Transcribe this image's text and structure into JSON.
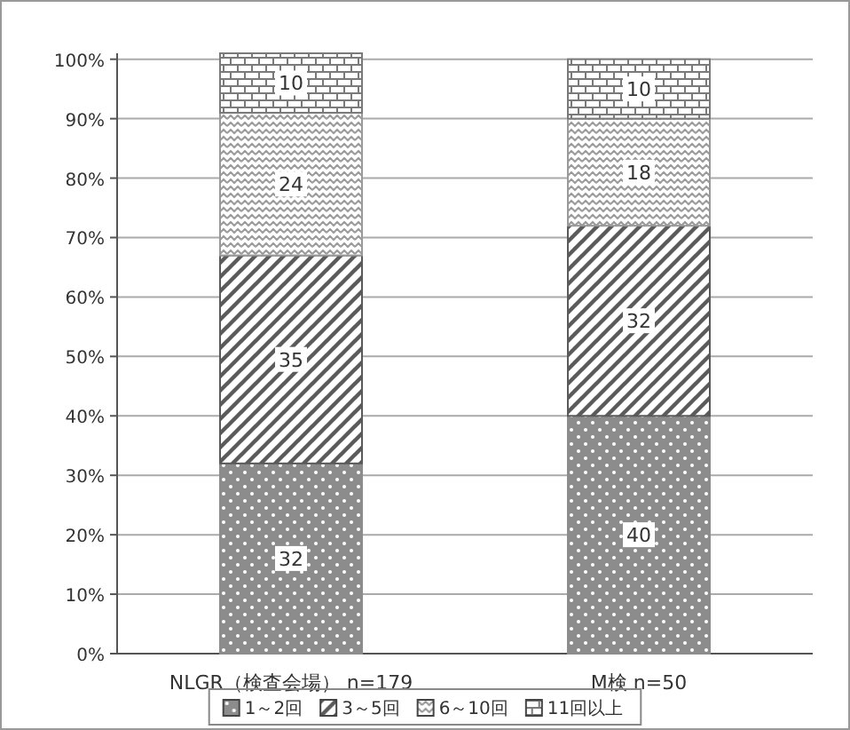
{
  "chart_data": {
    "type": "bar",
    "stacked": true,
    "categories": [
      "NLGR（検査会場） n=179",
      "M検 n=50"
    ],
    "series": [
      {
        "name": "1～2回",
        "color": "#8c8c8c",
        "values": [
          32,
          40
        ]
      },
      {
        "name": "3～5回",
        "color": "#5a5a5a",
        "values": [
          35,
          32
        ]
      },
      {
        "name": "6～10回",
        "color": "#9a9a9a",
        "values": [
          24,
          18
        ]
      },
      {
        "name": "11回以上",
        "color": "#7a7a7a",
        "values": [
          10,
          10
        ]
      }
    ],
    "ylim": [
      0,
      101
    ],
    "yticks": [
      {
        "value": 0,
        "label": "0%"
      },
      {
        "value": 10,
        "label": "10%"
      },
      {
        "value": 20,
        "label": "20%"
      },
      {
        "value": 30,
        "label": "30%"
      },
      {
        "value": 40,
        "label": "40%"
      },
      {
        "value": 50,
        "label": "50%"
      },
      {
        "value": 60,
        "label": "60%"
      },
      {
        "value": 70,
        "label": "70%"
      },
      {
        "value": 80,
        "label": "80%"
      },
      {
        "value": 90,
        "label": "90%"
      },
      {
        "value": 100,
        "label": "100%"
      }
    ],
    "grid": "y",
    "legend": "bottom",
    "data_labels": true
  }
}
